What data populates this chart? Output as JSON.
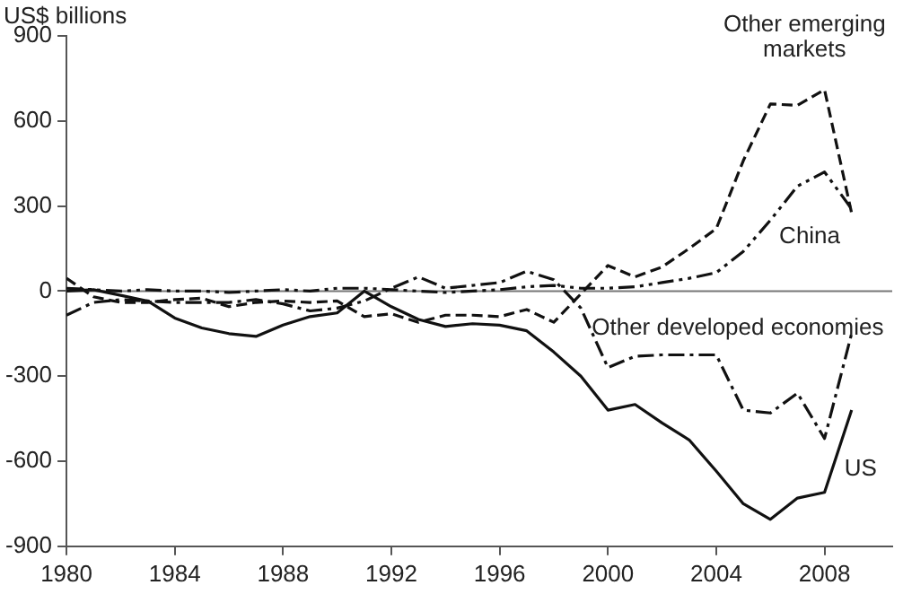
{
  "chart_data": {
    "type": "line",
    "ylabel": "US$ billions",
    "xlim": [
      1980,
      2010.5
    ],
    "xticks": [
      1980,
      1984,
      1988,
      1992,
      1996,
      2000,
      2004,
      2008
    ],
    "ylim": [
      -900,
      900
    ],
    "yticks": [
      -900,
      -600,
      -300,
      0,
      300,
      600,
      900
    ],
    "grid": false,
    "legend": false,
    "marker": "none",
    "x": [
      1980,
      1981,
      1982,
      1983,
      1984,
      1985,
      1986,
      1987,
      1988,
      1989,
      1990,
      1991,
      1992,
      1993,
      1994,
      1995,
      1996,
      1997,
      1998,
      1999,
      2000,
      2001,
      2002,
      2003,
      2004,
      2005,
      2006,
      2007,
      2008,
      2009
    ],
    "ref_lines": [
      {
        "axis": "y",
        "value": 0,
        "color": "#777777"
      }
    ],
    "series": [
      {
        "name": "Other emerging markets",
        "color": "#111111",
        "line_style": "dashed",
        "values": [
          45,
          -20,
          -40,
          -40,
          -30,
          -25,
          -55,
          -40,
          -35,
          -40,
          -35,
          -90,
          -80,
          -110,
          -85,
          -85,
          -90,
          -65,
          -110,
          -10,
          90,
          50,
          85,
          150,
          220,
          460,
          660,
          655,
          710,
          275
        ]
      },
      {
        "name": "China",
        "color": "#111111",
        "line_style": "dashdotdot",
        "values": [
          10,
          5,
          0,
          5,
          0,
          0,
          -5,
          0,
          5,
          0,
          10,
          10,
          5,
          0,
          -5,
          0,
          5,
          15,
          20,
          10,
          10,
          15,
          30,
          45,
          65,
          140,
          250,
          370,
          420,
          290
        ]
      },
      {
        "name": "Other developed economies",
        "color": "#111111",
        "line_style": "dashdot",
        "values": [
          -85,
          -40,
          -30,
          -35,
          -40,
          -40,
          -40,
          -30,
          -45,
          -70,
          -60,
          -35,
          10,
          50,
          10,
          20,
          30,
          70,
          40,
          -60,
          -270,
          -230,
          -225,
          -225,
          -225,
          -420,
          -430,
          -360,
          -520,
          -150
        ]
      },
      {
        "name": "US",
        "color": "#111111",
        "line_style": "solid",
        "values": [
          0,
          5,
          -15,
          -35,
          -95,
          -130,
          -150,
          -160,
          -120,
          -90,
          -77,
          0,
          -55,
          -100,
          -125,
          -115,
          -120,
          -140,
          -215,
          -300,
          -420,
          -400,
          -465,
          -525,
          -635,
          -750,
          -805,
          -730,
          -710,
          -420
        ]
      }
    ]
  }
}
